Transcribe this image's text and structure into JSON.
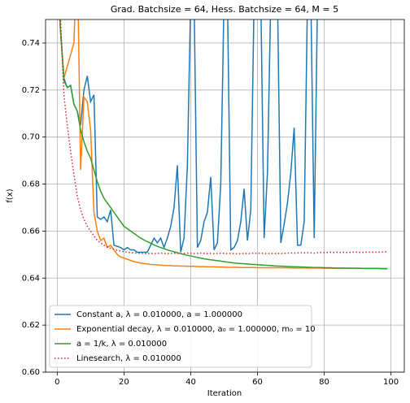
{
  "chart_data": {
    "type": "line",
    "title": "Grad. Batchsize = 64, Hess. Batchsize = 64, M = 5",
    "xlabel": "Iteration",
    "ylabel": "f(x)",
    "x": [
      0,
      1,
      2,
      3,
      4,
      5,
      6,
      7,
      8,
      9,
      10,
      11,
      12,
      13,
      14,
      15,
      16,
      17,
      18,
      19,
      20,
      21,
      22,
      23,
      24,
      25,
      26,
      27,
      28,
      29,
      30,
      31,
      32,
      33,
      34,
      35,
      36,
      37,
      38,
      39,
      40,
      41,
      42,
      43,
      44,
      45,
      46,
      47,
      48,
      49,
      50,
      51,
      52,
      53,
      54,
      55,
      56,
      57,
      58,
      59,
      60,
      61,
      62,
      63,
      64,
      65,
      66,
      67,
      68,
      69,
      70,
      71,
      72,
      73,
      74,
      75,
      76,
      77,
      78,
      79,
      80,
      81,
      82,
      83,
      84,
      85,
      86,
      87,
      88,
      89,
      90,
      91,
      92,
      93,
      94,
      95,
      96,
      97,
      98,
      99
    ],
    "series": [
      {
        "name": "Constant a, λ = 0.010000, a = 1.000000",
        "color": "#1f77b4",
        "linestyle": "solid",
        "values": [
          0.77,
          0.745,
          0.725,
          0.721,
          0.722,
          0.714,
          0.711,
          0.705,
          0.72,
          0.726,
          0.715,
          0.718,
          0.666,
          0.665,
          0.666,
          0.664,
          0.669,
          0.654,
          0.6535,
          0.653,
          0.652,
          0.653,
          0.652,
          0.652,
          0.651,
          0.651,
          0.651,
          0.651,
          0.654,
          0.657,
          0.655,
          0.657,
          0.653,
          0.657,
          0.662,
          0.67,
          0.688,
          0.651,
          0.657,
          0.688,
          0.76,
          0.76,
          0.653,
          0.656,
          0.664,
          0.668,
          0.683,
          0.652,
          0.655,
          0.68,
          0.76,
          0.76,
          0.652,
          0.653,
          0.656,
          0.664,
          0.678,
          0.656,
          0.669,
          0.76,
          0.76,
          0.76,
          0.657,
          0.685,
          0.76,
          0.76,
          0.76,
          0.655,
          0.663,
          0.672,
          0.685,
          0.704,
          0.654,
          0.654,
          0.664,
          0.76,
          0.76,
          0.657,
          0.76,
          0.76,
          null,
          null,
          null,
          null,
          null,
          null,
          null,
          null,
          null,
          null,
          null,
          null,
          null,
          null,
          null,
          null,
          null,
          null,
          null,
          null
        ]
      },
      {
        "name": "Exponential decay, λ = 0.010000, a₀ = 1.000000, m₀ = 10",
        "color": "#ff7f0e",
        "linestyle": "solid",
        "values": [
          0.77,
          0.745,
          0.725,
          0.73,
          0.735,
          0.74,
          0.78,
          0.686,
          0.717,
          0.715,
          0.703,
          0.668,
          0.66,
          0.656,
          0.657,
          0.653,
          0.654,
          0.652,
          0.65,
          0.649,
          0.6485,
          0.648,
          0.6475,
          0.647,
          0.6467,
          0.6464,
          0.6462,
          0.646,
          0.6458,
          0.6457,
          0.6456,
          0.6455,
          0.6454,
          0.6453,
          0.6453,
          0.6452,
          0.6452,
          0.6451,
          0.6451,
          0.645,
          0.645,
          0.645,
          0.6449,
          0.6449,
          0.6449,
          0.6448,
          0.6448,
          0.6448,
          0.6447,
          0.6447,
          0.6447,
          0.6446,
          0.6446,
          0.6446,
          0.6446,
          0.6445,
          0.6445,
          0.6445,
          0.6445,
          0.6445,
          0.6444,
          0.6444,
          0.6444,
          0.6444,
          0.6444,
          0.6444,
          0.6444,
          0.6444,
          0.6444,
          0.6444,
          0.6443,
          0.6443,
          0.6443,
          0.6443,
          0.6443,
          0.6443,
          0.6443,
          0.6443,
          0.6443,
          0.6443,
          0.6442,
          0.6442,
          0.6442,
          0.6442,
          0.6442,
          0.6442,
          0.6442,
          0.6442,
          0.6442,
          0.6442,
          0.6441,
          0.6441,
          0.6441,
          0.6441,
          0.6441,
          0.6441,
          0.6441,
          0.6441,
          0.6441,
          0.6441
        ]
      },
      {
        "name": "a = 1/k, λ = 0.010000",
        "color": "#2ca02c",
        "linestyle": "solid",
        "values": [
          0.77,
          0.745,
          0.724,
          0.721,
          0.722,
          0.714,
          0.711,
          0.703,
          0.698,
          0.694,
          0.691,
          0.686,
          0.681,
          0.677,
          0.674,
          0.672,
          0.67,
          0.668,
          0.666,
          0.664,
          0.662,
          0.661,
          0.66,
          0.659,
          0.658,
          0.657,
          0.6562,
          0.6555,
          0.6548,
          0.6541,
          0.6535,
          0.653,
          0.6525,
          0.652,
          0.6516,
          0.6512,
          0.6508,
          0.6504,
          0.65,
          0.6497,
          0.6494,
          0.6491,
          0.6488,
          0.6485,
          0.6482,
          0.648,
          0.6478,
          0.6476,
          0.6474,
          0.6472,
          0.647,
          0.6468,
          0.6466,
          0.6464,
          0.6463,
          0.6462,
          0.6461,
          0.646,
          0.6459,
          0.6458,
          0.6457,
          0.6456,
          0.6455,
          0.6454,
          0.6453,
          0.6452,
          0.6451,
          0.6451,
          0.645,
          0.6449,
          0.6449,
          0.6448,
          0.6448,
          0.6447,
          0.6447,
          0.6446,
          0.6446,
          0.6445,
          0.6445,
          0.6445,
          0.6444,
          0.6444,
          0.6444,
          0.6443,
          0.6443,
          0.6443,
          0.6443,
          0.6442,
          0.6442,
          0.6442,
          0.6442,
          0.6442,
          0.6441,
          0.6441,
          0.6441,
          0.6441,
          0.6441,
          0.644,
          0.644,
          0.644
        ]
      },
      {
        "name": "Linesearch, λ = 0.010000",
        "color": "#d62728",
        "linestyle": "dotted",
        "values": [
          0.78,
          0.75,
          0.718,
          0.705,
          0.694,
          0.684,
          0.675,
          0.669,
          0.665,
          0.662,
          0.66,
          0.658,
          0.656,
          0.655,
          0.654,
          0.6533,
          0.6527,
          0.6522,
          0.6518,
          0.6515,
          0.6512,
          0.651,
          0.6508,
          0.6507,
          0.6506,
          0.6505,
          0.6505,
          0.6504,
          0.6505,
          0.6504,
          0.6505,
          0.6506,
          0.6505,
          0.6504,
          0.6505,
          0.6506,
          0.6505,
          0.6504,
          0.6505,
          0.6506,
          0.6505,
          0.6504,
          0.6505,
          0.6506,
          0.6505,
          0.6504,
          0.6505,
          0.6504,
          0.6505,
          0.6506,
          0.6505,
          0.6504,
          0.6505,
          0.6504,
          0.6503,
          0.6504,
          0.6505,
          0.6504,
          0.6505,
          0.6506,
          0.6505,
          0.6506,
          0.6505,
          0.6504,
          0.6505,
          0.6504,
          0.6505,
          0.6504,
          0.6505,
          0.6506,
          0.6507,
          0.6506,
          0.6507,
          0.6508,
          0.6507,
          0.6508,
          0.6507,
          0.6506,
          0.6508,
          0.6509,
          0.6508,
          0.6509,
          0.651,
          0.6509,
          0.651,
          0.6509,
          0.651,
          0.6509,
          0.651,
          0.6511,
          0.651,
          0.6509,
          0.651,
          0.6511,
          0.651,
          0.6511,
          0.651,
          0.6511,
          0.6512,
          0.6512
        ]
      }
    ],
    "xlim": [
      -3.5,
      104
    ],
    "ylim": [
      0.6,
      0.75
    ],
    "xticks": [
      0,
      20,
      40,
      60,
      80,
      100
    ],
    "yticks": [
      {
        "value": 0.6,
        "label": "0.60"
      },
      {
        "value": 0.62,
        "label": "0.62"
      },
      {
        "value": 0.64,
        "label": "0.64"
      },
      {
        "value": 0.66,
        "label": "0.66"
      },
      {
        "value": 0.68,
        "label": "0.68"
      },
      {
        "value": 0.7,
        "label": "0.70"
      },
      {
        "value": 0.72,
        "label": "0.72"
      },
      {
        "value": 0.74,
        "label": "0.74"
      }
    ],
    "grid": true,
    "legend": "lower left"
  }
}
